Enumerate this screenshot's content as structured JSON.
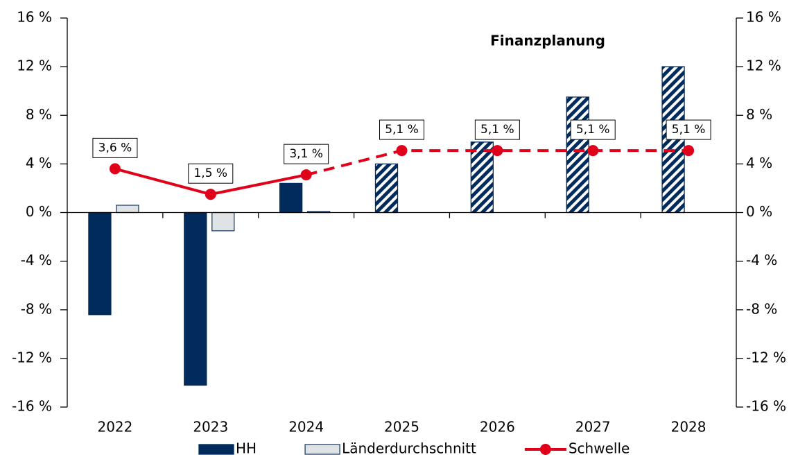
{
  "chart_data": {
    "type": "bar_line",
    "annotation": "Finanzplanung",
    "categories": [
      "2022",
      "2023",
      "2024",
      "2025",
      "2026",
      "2027",
      "2028"
    ],
    "forecast_from": "2025",
    "series": [
      {
        "name": "HH",
        "type": "bar",
        "color": "#002b5c",
        "values": [
          -8.4,
          -14.2,
          2.4,
          4.0,
          5.8,
          9.5,
          12.0
        ]
      },
      {
        "name": "Länderdurchschnitt",
        "type": "bar",
        "color": "#dfe3e6",
        "edge": "#1f3f66",
        "values": [
          0.6,
          -1.5,
          0.1,
          null,
          null,
          null,
          null
        ]
      },
      {
        "name": "Schwelle",
        "type": "line",
        "color": "#e1001a",
        "values": [
          3.6,
          1.5,
          3.1,
          5.1,
          5.1,
          5.1,
          5.1
        ],
        "value_labels": [
          "3,6 %",
          "1,5 %",
          "3,1 %",
          "5,1 %",
          "5,1 %",
          "5,1 %",
          "5,1 %"
        ]
      }
    ],
    "ylim": [
      -16,
      16
    ],
    "yticks": [
      {
        "value": -16,
        "label": "-16 %"
      },
      {
        "value": -12,
        "label": "-12 %"
      },
      {
        "value": -8,
        "label": "-8 %"
      },
      {
        "value": -4,
        "label": "-4 %"
      },
      {
        "value": 0,
        "label": "0 %"
      },
      {
        "value": 4,
        "label": "4 %"
      },
      {
        "value": 8,
        "label": "8 %"
      },
      {
        "value": 12,
        "label": "12 %"
      },
      {
        "value": 16,
        "label": "16 %"
      }
    ],
    "y2lim": [
      -16,
      16
    ],
    "y2ticks": [
      {
        "value": -16,
        "label": "-16 %"
      },
      {
        "value": -12,
        "label": "-12 %"
      },
      {
        "value": -8,
        "label": "-8 %"
      },
      {
        "value": -4,
        "label": "-4 %"
      },
      {
        "value": 0,
        "label": "0 %"
      },
      {
        "value": 4,
        "label": "4 %"
      },
      {
        "value": 8,
        "label": "8 %"
      },
      {
        "value": 12,
        "label": "12 %"
      },
      {
        "value": 16,
        "label": "16 %"
      }
    ],
    "legend": "bottom"
  }
}
